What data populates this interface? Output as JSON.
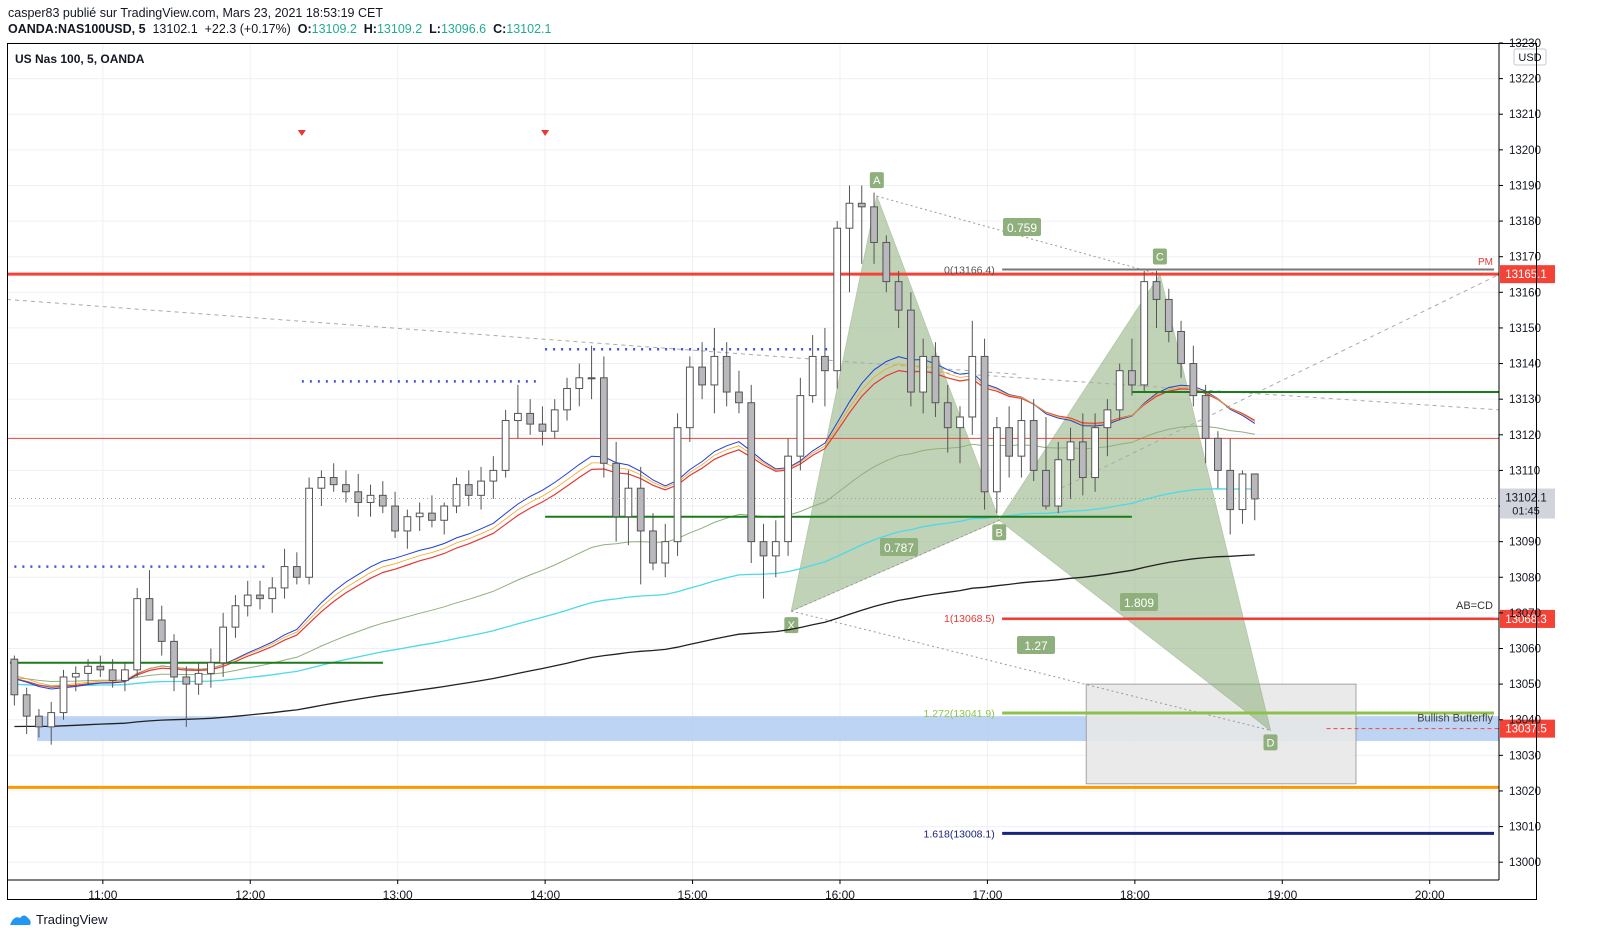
{
  "header": {
    "line1": "casper83 publié sur TradingView.com, Mars 23, 2021 18:53:19 CET",
    "symbol": "OANDA:NAS100USD, 5",
    "price": "13102.1",
    "change": "+22.3 (+0.17%)",
    "o_label": "O:",
    "o_val": "13109.2",
    "h_label": "H:",
    "h_val": "13109.2",
    "l_label": "L:",
    "l_val": "13096.6",
    "c_label": "C:",
    "c_val": "13102.1"
  },
  "pane_title": "US Nas 100, 5, OANDA",
  "currency": "USD",
  "footer_logo": "TradingView",
  "chart_data": {
    "type": "candlestick",
    "title": "US Nas 100, 5, OANDA",
    "ylim": [
      12995,
      13230
    ],
    "y_ticks": [
      13000,
      13010,
      13020,
      13030,
      13040,
      13050,
      13060,
      13070,
      13080,
      13090,
      13100,
      13110,
      13120,
      13130,
      13140,
      13150,
      13160,
      13170,
      13180,
      13190,
      13200,
      13210,
      13220,
      13230
    ],
    "x_range": [
      10.35,
      20.47
    ],
    "x_ticks": [
      {
        "t": 11,
        "label": "11:00"
      },
      {
        "t": 12,
        "label": "12:00"
      },
      {
        "t": 13,
        "label": "13:00"
      },
      {
        "t": 14,
        "label": "14:00"
      },
      {
        "t": 15,
        "label": "15:00"
      },
      {
        "t": 16,
        "label": "16:00"
      },
      {
        "t": 17,
        "label": "17:00"
      },
      {
        "t": 18,
        "label": "18:00"
      },
      {
        "t": 19,
        "label": "19:00"
      },
      {
        "t": 20,
        "label": "20:00"
      }
    ],
    "candles_start": 10.4,
    "candle_step_hours": 0.0833,
    "candles": [
      [
        13057,
        13058,
        13044,
        13047
      ],
      [
        13047,
        13049,
        13036,
        13041
      ],
      [
        13041,
        13043,
        13035,
        13038
      ],
      [
        13038,
        13045,
        13033,
        13042
      ],
      [
        13042,
        13054,
        13040,
        13052
      ],
      [
        13052,
        13055,
        13048,
        13053
      ],
      [
        13053,
        13057,
        13050,
        13055
      ],
      [
        13055,
        13058,
        13052,
        13054
      ],
      [
        13054,
        13057,
        13049,
        13051
      ],
      [
        13051,
        13056,
        13048,
        13054
      ],
      [
        13054,
        13077,
        13052,
        13074
      ],
      [
        13074,
        13082,
        13069,
        13068
      ],
      [
        13068,
        13072,
        13058,
        13062
      ],
      [
        13062,
        13064,
        13048,
        13052
      ],
      [
        13052,
        13055,
        13038,
        13050
      ],
      [
        13050,
        13056,
        13047,
        13053
      ],
      [
        13053,
        13060,
        13049,
        13056
      ],
      [
        13056,
        13070,
        13052,
        13066
      ],
      [
        13066,
        13075,
        13063,
        13072
      ],
      [
        13072,
        13079,
        13069,
        13075
      ],
      [
        13075,
        13079,
        13071,
        13074
      ],
      [
        13074,
        13080,
        13070,
        13077
      ],
      [
        13077,
        13088,
        13074,
        13083
      ],
      [
        13083,
        13087,
        13078,
        13080
      ],
      [
        13080,
        13108,
        13078,
        13105
      ],
      [
        13105,
        13110,
        13100,
        13108
      ],
      [
        13108,
        13112,
        13104,
        13106
      ],
      [
        13106,
        13110,
        13101,
        13104
      ],
      [
        13104,
        13109,
        13097,
        13101
      ],
      [
        13101,
        13106,
        13097,
        13103
      ],
      [
        13103,
        13107,
        13098,
        13100
      ],
      [
        13100,
        13104,
        13091,
        13093
      ],
      [
        13093,
        13099,
        13088,
        13097
      ],
      [
        13097,
        13101,
        13093,
        13098
      ],
      [
        13098,
        13103,
        13094,
        13096
      ],
      [
        13096,
        13101,
        13092,
        13100
      ],
      [
        13100,
        13108,
        13098,
        13106
      ],
      [
        13106,
        13110,
        13100,
        13103
      ],
      [
        13103,
        13111,
        13099,
        13107
      ],
      [
        13107,
        13114,
        13102,
        13110
      ],
      [
        13110,
        13127,
        13108,
        13124
      ],
      [
        13124,
        13134,
        13119,
        13126
      ],
      [
        13126,
        13130,
        13120,
        13123
      ],
      [
        13123,
        13128,
        13117,
        13121
      ],
      [
        13121,
        13130,
        13119,
        13127
      ],
      [
        13127,
        13136,
        13124,
        13133
      ],
      [
        13133,
        13140,
        13128,
        13136
      ],
      [
        13136,
        13145,
        13130,
        13136
      ],
      [
        13136,
        13142,
        13108,
        13112
      ],
      [
        13112,
        13118,
        13090,
        13097
      ],
      [
        13097,
        13110,
        13089,
        13105
      ],
      [
        13105,
        13111,
        13078,
        13093
      ],
      [
        13093,
        13098,
        13082,
        13084
      ],
      [
        13084,
        13095,
        13080,
        13090
      ],
      [
        13090,
        13126,
        13086,
        13122
      ],
      [
        13122,
        13142,
        13118,
        13139
      ],
      [
        13139,
        13146,
        13130,
        13134
      ],
      [
        13134,
        13150,
        13126,
        13142
      ],
      [
        13142,
        13146,
        13128,
        13132
      ],
      [
        13132,
        13138,
        13126,
        13129
      ],
      [
        13129,
        13134,
        13084,
        13090
      ],
      [
        13090,
        13095,
        13074,
        13086
      ],
      [
        13086,
        13096,
        13080,
        13090
      ],
      [
        13090,
        13119,
        13086,
        13114
      ],
      [
        13114,
        13136,
        13110,
        13131
      ],
      [
        13131,
        13148,
        13129,
        13142
      ],
      [
        13142,
        13150,
        13128,
        13138
      ],
      [
        13138,
        13180,
        13133,
        13178
      ],
      [
        13178,
        13190,
        13160,
        13185
      ],
      [
        13185,
        13190,
        13168,
        13184
      ],
      [
        13184,
        13188,
        13168,
        13174
      ],
      [
        13174,
        13176,
        13160,
        13163
      ],
      [
        13163,
        13166,
        13150,
        13155
      ],
      [
        13155,
        13160,
        13128,
        13132
      ],
      [
        13132,
        13147,
        13126,
        13142
      ],
      [
        13142,
        13146,
        13125,
        13129
      ],
      [
        13129,
        13134,
        13115,
        13122
      ],
      [
        13122,
        13128,
        13112,
        13125
      ],
      [
        13125,
        13152,
        13120,
        13142
      ],
      [
        13142,
        13147,
        13099,
        13104
      ],
      [
        13104,
        13125,
        13098,
        13122
      ],
      [
        13122,
        13128,
        13108,
        13114
      ],
      [
        13114,
        13130,
        13108,
        13124
      ],
      [
        13124,
        13130,
        13107,
        13110
      ],
      [
        13110,
        13125,
        13099,
        13100
      ],
      [
        13100,
        13118,
        13098,
        13113
      ],
      [
        13113,
        13122,
        13102,
        13118
      ],
      [
        13118,
        13126,
        13103,
        13108
      ],
      [
        13108,
        13126,
        13104,
        13122
      ],
      [
        13122,
        13130,
        13114,
        13127
      ],
      [
        13127,
        13140,
        13124,
        13138
      ],
      [
        13138,
        13147,
        13131,
        13134
      ],
      [
        13134,
        13166,
        13132,
        13163
      ],
      [
        13163,
        13166,
        13150,
        13158
      ],
      [
        13158,
        13161,
        13146,
        13149
      ],
      [
        13149,
        13152,
        13136,
        13140
      ],
      [
        13140,
        13145,
        13128,
        13131
      ],
      [
        13131,
        13134,
        13112,
        13119
      ],
      [
        13119,
        13121,
        13105,
        13110
      ],
      [
        13110,
        13119,
        13092,
        13099
      ],
      [
        13099,
        13110,
        13095,
        13109
      ],
      [
        13109,
        13109,
        13096,
        13102
      ]
    ],
    "hlines": [
      {
        "y": 13165.1,
        "color": "#f44336",
        "label": "13165.1",
        "style": "thick"
      },
      {
        "y": 13119,
        "color": "#f44336",
        "label": "",
        "style": "thin"
      },
      {
        "y": 13068.3,
        "color": "#f44336",
        "label": "13068.3",
        "style": "tag"
      },
      {
        "y": 13037.5,
        "color": "#f44336",
        "label": "13037.5",
        "style": "tag"
      },
      {
        "y": 13021,
        "color": "#ff9800",
        "label": "",
        "style": "thick"
      }
    ],
    "last_price": "13102.1",
    "countdown": "01:45",
    "fib_labels": [
      {
        "text": "0(13166.4)",
        "color": "#555555"
      },
      {
        "text": "1(13068.5)",
        "color": "#e53935"
      },
      {
        "text": "1.272(13041.9)",
        "color": "#8bc34a"
      },
      {
        "text": "1.618(13008.1)",
        "color": "#1a237e"
      }
    ],
    "pattern_labels": [
      "X",
      "A",
      "B",
      "C",
      "D"
    ],
    "ratio_labels": [
      "0.759",
      "0.787",
      "1.809",
      "1.27"
    ],
    "pattern_name": "Bullish Butterfly",
    "abcd_label": "AB=CD",
    "pm_label": "PM"
  }
}
